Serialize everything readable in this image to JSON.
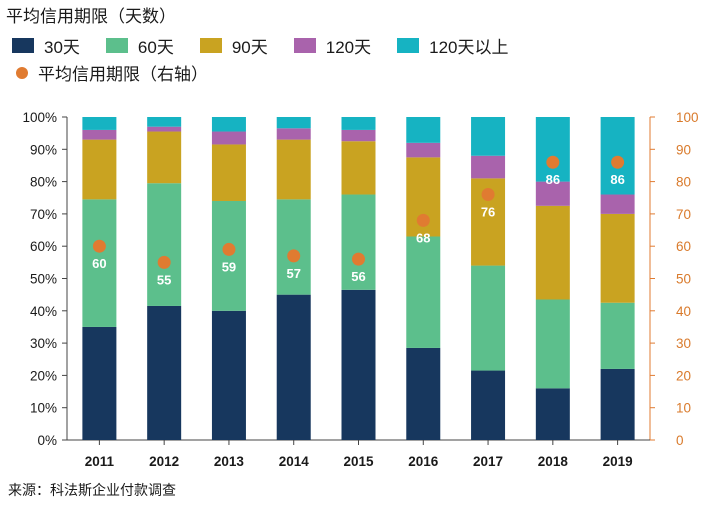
{
  "title": "平均信用期限（天数）",
  "source": "来源：科法斯企业付款调查",
  "colors": {
    "30天": "#17375e",
    "60天": "#5cbf8c",
    "90天": "#c9a321",
    "120天": "#a963ac",
    "120天以上": "#16b3c2",
    "avg": "#e07b31"
  },
  "legend": {
    "row1": [
      {
        "label": "30天",
        "color": "#17375e"
      },
      {
        "label": "60天",
        "color": "#5cbf8c"
      },
      {
        "label": "90天",
        "color": "#c9a321"
      },
      {
        "label": "120天",
        "color": "#a963ac"
      },
      {
        "label": "120天以上",
        "color": "#16b3c2"
      }
    ],
    "row2": [
      {
        "label": "平均信用期限（右轴）",
        "color": "#e07b31"
      }
    ]
  },
  "chart_data": {
    "type": "bar",
    "stacked": true,
    "categories": [
      "2011",
      "2012",
      "2013",
      "2014",
      "2015",
      "2016",
      "2017",
      "2018",
      "2019"
    ],
    "series": [
      {
        "name": "30天",
        "values": [
          35,
          41.5,
          40,
          45,
          46.5,
          28.5,
          21.5,
          16,
          22
        ]
      },
      {
        "name": "60天",
        "values": [
          39.5,
          38,
          34,
          29.5,
          29.5,
          34.5,
          32.5,
          27.5,
          20.5
        ]
      },
      {
        "name": "90天",
        "values": [
          18.5,
          16,
          17.5,
          18.5,
          16.5,
          24.5,
          27,
          29,
          27.5
        ]
      },
      {
        "name": "120天",
        "values": [
          3,
          1.5,
          4,
          3.5,
          3.5,
          4.5,
          7,
          7.5,
          6
        ]
      },
      {
        "name": "120天以上",
        "values": [
          4,
          3,
          4.5,
          3.5,
          4,
          8,
          12,
          20,
          24
        ]
      }
    ],
    "line": {
      "name": "平均信用期限（右轴）",
      "values": [
        60,
        55,
        59,
        57,
        56,
        68,
        76,
        86,
        86
      ]
    },
    "y_left": {
      "ticks": [
        "0%",
        "10%",
        "20%",
        "30%",
        "40%",
        "50%",
        "60%",
        "70%",
        "80%",
        "90%",
        "100%"
      ],
      "min": 0,
      "max": 100
    },
    "y_right": {
      "ticks": [
        "0",
        "10",
        "20",
        "30",
        "40",
        "50",
        "60",
        "70",
        "80",
        "90",
        "100"
      ],
      "min": 0,
      "max": 100
    }
  }
}
